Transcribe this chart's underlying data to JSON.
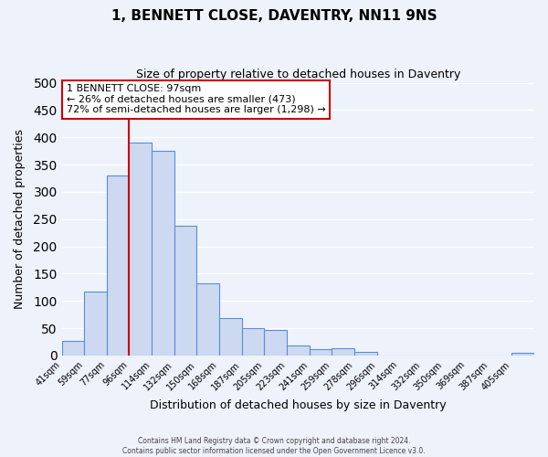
{
  "title": "1, BENNETT CLOSE, DAVENTRY, NN11 9NS",
  "subtitle": "Size of property relative to detached houses in Daventry",
  "xlabel": "Distribution of detached houses by size in Daventry",
  "ylabel": "Number of detached properties",
  "bin_labels": [
    "41sqm",
    "59sqm",
    "77sqm",
    "96sqm",
    "114sqm",
    "132sqm",
    "150sqm",
    "168sqm",
    "187sqm",
    "205sqm",
    "223sqm",
    "241sqm",
    "259sqm",
    "278sqm",
    "296sqm",
    "314sqm",
    "332sqm",
    "350sqm",
    "369sqm",
    "387sqm",
    "405sqm"
  ],
  "bar_values": [
    27,
    117,
    330,
    390,
    375,
    237,
    133,
    68,
    50,
    46,
    19,
    12,
    13,
    7,
    0,
    0,
    0,
    0,
    0,
    0,
    5
  ],
  "bar_color": "#ccd9f0",
  "bar_edge_color": "#5b8dd9",
  "annotation_line1": "1 BENNETT CLOSE: 97sqm",
  "annotation_line2": "← 26% of detached houses are smaller (473)",
  "annotation_line3": "72% of semi-detached houses are larger (1,298) →",
  "annotation_box_color": "#ffffff",
  "annotation_box_edge_color": "#cc0000",
  "vline_color": "#cc0000",
  "vline_x_bar_index": 3,
  "ylim": [
    0,
    500
  ],
  "yticks": [
    0,
    50,
    100,
    150,
    200,
    250,
    300,
    350,
    400,
    450,
    500
  ],
  "footer_line1": "Contains HM Land Registry data © Crown copyright and database right 2024.",
  "footer_line2": "Contains public sector information licensed under the Open Government Licence v3.0.",
  "background_color": "#eef2fb",
  "grid_color": "#ffffff"
}
